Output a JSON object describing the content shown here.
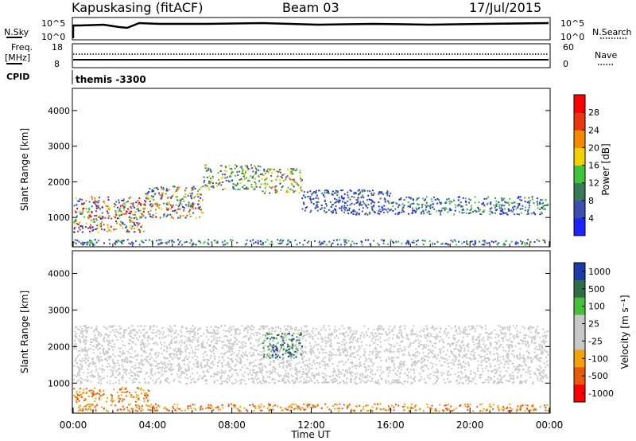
{
  "header": {
    "station": "Kapuskasing (fitACF)",
    "beam": "Beam 03",
    "date": "17/Jul/2015"
  },
  "top_panels": {
    "nsky_label": "N.Sky",
    "nsky_ticks": [
      "10^5",
      "10^0"
    ],
    "nsearch_label": "N.Search",
    "nsearch_ticks": [
      "10^5",
      "10^0"
    ],
    "freq_label": "Freq.",
    "freq_unit": "[MHz]",
    "freq_ticks": [
      "18",
      "8"
    ],
    "nave_label": "Nave",
    "nave_ticks": [
      "60",
      "0"
    ],
    "cpid_label": "CPID",
    "cpid_value": "themis -3300"
  },
  "colors": {
    "power": [
      "#1e22ff",
      "#3c4fb0",
      "#377a55",
      "#41c43b",
      "#f2d100",
      "#f38a00",
      "#e8360e",
      "#ff0000"
    ],
    "velocity": [
      "#1d3aa8",
      "#2f6f46",
      "#49c03c",
      "#c8c8c8",
      "#c8c8c8",
      "#f2a20c",
      "#e65b0e",
      "#ff0000"
    ]
  },
  "chart_data": [
    {
      "type": "heatmap",
      "panel": "power",
      "ylabel": "Slant Range [km]",
      "y_ticks": [
        1000,
        2000,
        3000,
        4000
      ],
      "ylim": [
        200,
        4600
      ],
      "xlim": [
        0,
        24
      ],
      "x_ticks": [
        "00:00",
        "04:00",
        "08:00",
        "12:00",
        "16:00",
        "20:00",
        "00:00"
      ],
      "colorbar_label": "Power [dB]",
      "colorbar_ticks": [
        "4",
        "8",
        "12",
        "16",
        "20",
        "24",
        "28"
      ],
      "scatter_bands": [
        {
          "t": [
            0.0,
            3.6
          ],
          "r": [
            600,
            1600
          ],
          "color_index": [
            0,
            7
          ]
        },
        {
          "t": [
            3.6,
            6.5
          ],
          "r": [
            1000,
            1900
          ],
          "color_index": [
            0,
            6
          ]
        },
        {
          "t": [
            6.5,
            9.5
          ],
          "r": [
            1800,
            2500
          ],
          "color_index": [
            1,
            4
          ]
        },
        {
          "t": [
            9.5,
            11.5
          ],
          "r": [
            1700,
            2400
          ],
          "color_index": [
            1,
            5
          ]
        },
        {
          "t": [
            11.5,
            16
          ],
          "r": [
            1100,
            1800
          ],
          "color_index": [
            0,
            2
          ]
        },
        {
          "t": [
            16,
            24
          ],
          "r": [
            1100,
            1600
          ],
          "color_index": [
            0,
            3
          ]
        },
        {
          "t": [
            0.0,
            24
          ],
          "r": [
            250,
            400
          ],
          "color_index": [
            0,
            3
          ]
        }
      ]
    },
    {
      "type": "heatmap",
      "panel": "velocity",
      "ylabel": "Slant Range [km]",
      "y_ticks": [
        1000,
        2000,
        3000,
        4000
      ],
      "ylim": [
        200,
        4600
      ],
      "xlim": [
        0,
        24
      ],
      "x_ticks": [
        "00:00",
        "04:00",
        "08:00",
        "12:00",
        "16:00",
        "20:00",
        "00:00"
      ],
      "xlabel": "Time UT",
      "colorbar_label": "Velocity [m s⁻¹]",
      "colorbar_ticks": [
        "1000",
        "500",
        "100",
        "25",
        "-25",
        "-100",
        "-500",
        "-1000"
      ],
      "scatter_bands": [
        {
          "t": [
            0.0,
            3.8
          ],
          "r": [
            500,
            900
          ],
          "color_index": [
            5,
            6
          ]
        },
        {
          "t": [
            0.0,
            24
          ],
          "r": [
            1000,
            2600
          ],
          "color_index": [
            3,
            3
          ]
        },
        {
          "t": [
            9.5,
            11.5
          ],
          "r": [
            1700,
            2400
          ],
          "color_index": [
            0,
            2
          ]
        },
        {
          "t": [
            0.0,
            24
          ],
          "r": [
            250,
            450
          ],
          "color_index": [
            5,
            6
          ]
        }
      ]
    }
  ]
}
